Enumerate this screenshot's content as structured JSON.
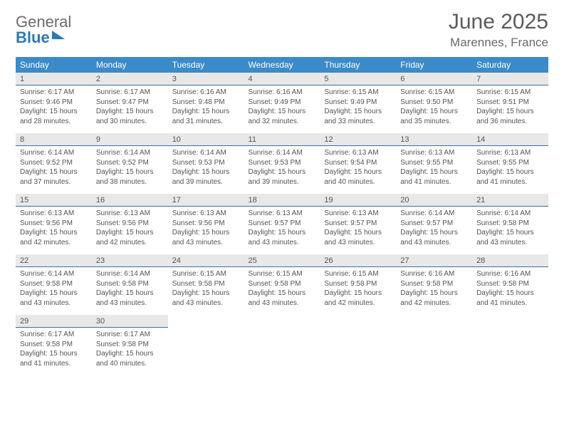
{
  "brand": {
    "part1": "General",
    "part2": "Blue"
  },
  "title": "June 2025",
  "location": "Marennes, France",
  "colors": {
    "header_bg": "#3b8bc8",
    "header_text": "#ffffff",
    "daynum_bg": "#e8e8e8",
    "daynum_border": "#3b6f9a",
    "text": "#555555",
    "brand_gray": "#6b6b6b",
    "brand_blue": "#2a7ab8",
    "page_bg": "#ffffff"
  },
  "typography": {
    "title_fontsize": 30,
    "location_fontsize": 17,
    "dow_fontsize": 12,
    "daynum_fontsize": 11,
    "details_fontsize": 10
  },
  "days_of_week": [
    "Sunday",
    "Monday",
    "Tuesday",
    "Wednesday",
    "Thursday",
    "Friday",
    "Saturday"
  ],
  "weeks": [
    [
      {
        "n": "1",
        "sunrise": "Sunrise: 6:17 AM",
        "sunset": "Sunset: 9:46 PM",
        "day": "Daylight: 15 hours and 28 minutes."
      },
      {
        "n": "2",
        "sunrise": "Sunrise: 6:17 AM",
        "sunset": "Sunset: 9:47 PM",
        "day": "Daylight: 15 hours and 30 minutes."
      },
      {
        "n": "3",
        "sunrise": "Sunrise: 6:16 AM",
        "sunset": "Sunset: 9:48 PM",
        "day": "Daylight: 15 hours and 31 minutes."
      },
      {
        "n": "4",
        "sunrise": "Sunrise: 6:16 AM",
        "sunset": "Sunset: 9:49 PM",
        "day": "Daylight: 15 hours and 32 minutes."
      },
      {
        "n": "5",
        "sunrise": "Sunrise: 6:15 AM",
        "sunset": "Sunset: 9:49 PM",
        "day": "Daylight: 15 hours and 33 minutes."
      },
      {
        "n": "6",
        "sunrise": "Sunrise: 6:15 AM",
        "sunset": "Sunset: 9:50 PM",
        "day": "Daylight: 15 hours and 35 minutes."
      },
      {
        "n": "7",
        "sunrise": "Sunrise: 6:15 AM",
        "sunset": "Sunset: 9:51 PM",
        "day": "Daylight: 15 hours and 36 minutes."
      }
    ],
    [
      {
        "n": "8",
        "sunrise": "Sunrise: 6:14 AM",
        "sunset": "Sunset: 9:52 PM",
        "day": "Daylight: 15 hours and 37 minutes."
      },
      {
        "n": "9",
        "sunrise": "Sunrise: 6:14 AM",
        "sunset": "Sunset: 9:52 PM",
        "day": "Daylight: 15 hours and 38 minutes."
      },
      {
        "n": "10",
        "sunrise": "Sunrise: 6:14 AM",
        "sunset": "Sunset: 9:53 PM",
        "day": "Daylight: 15 hours and 39 minutes."
      },
      {
        "n": "11",
        "sunrise": "Sunrise: 6:14 AM",
        "sunset": "Sunset: 9:53 PM",
        "day": "Daylight: 15 hours and 39 minutes."
      },
      {
        "n": "12",
        "sunrise": "Sunrise: 6:13 AM",
        "sunset": "Sunset: 9:54 PM",
        "day": "Daylight: 15 hours and 40 minutes."
      },
      {
        "n": "13",
        "sunrise": "Sunrise: 6:13 AM",
        "sunset": "Sunset: 9:55 PM",
        "day": "Daylight: 15 hours and 41 minutes."
      },
      {
        "n": "14",
        "sunrise": "Sunrise: 6:13 AM",
        "sunset": "Sunset: 9:55 PM",
        "day": "Daylight: 15 hours and 41 minutes."
      }
    ],
    [
      {
        "n": "15",
        "sunrise": "Sunrise: 6:13 AM",
        "sunset": "Sunset: 9:56 PM",
        "day": "Daylight: 15 hours and 42 minutes."
      },
      {
        "n": "16",
        "sunrise": "Sunrise: 6:13 AM",
        "sunset": "Sunset: 9:56 PM",
        "day": "Daylight: 15 hours and 42 minutes."
      },
      {
        "n": "17",
        "sunrise": "Sunrise: 6:13 AM",
        "sunset": "Sunset: 9:56 PM",
        "day": "Daylight: 15 hours and 43 minutes."
      },
      {
        "n": "18",
        "sunrise": "Sunrise: 6:13 AM",
        "sunset": "Sunset: 9:57 PM",
        "day": "Daylight: 15 hours and 43 minutes."
      },
      {
        "n": "19",
        "sunrise": "Sunrise: 6:13 AM",
        "sunset": "Sunset: 9:57 PM",
        "day": "Daylight: 15 hours and 43 minutes."
      },
      {
        "n": "20",
        "sunrise": "Sunrise: 6:14 AM",
        "sunset": "Sunset: 9:57 PM",
        "day": "Daylight: 15 hours and 43 minutes."
      },
      {
        "n": "21",
        "sunrise": "Sunrise: 6:14 AM",
        "sunset": "Sunset: 9:58 PM",
        "day": "Daylight: 15 hours and 43 minutes."
      }
    ],
    [
      {
        "n": "22",
        "sunrise": "Sunrise: 6:14 AM",
        "sunset": "Sunset: 9:58 PM",
        "day": "Daylight: 15 hours and 43 minutes."
      },
      {
        "n": "23",
        "sunrise": "Sunrise: 6:14 AM",
        "sunset": "Sunset: 9:58 PM",
        "day": "Daylight: 15 hours and 43 minutes."
      },
      {
        "n": "24",
        "sunrise": "Sunrise: 6:15 AM",
        "sunset": "Sunset: 9:58 PM",
        "day": "Daylight: 15 hours and 43 minutes."
      },
      {
        "n": "25",
        "sunrise": "Sunrise: 6:15 AM",
        "sunset": "Sunset: 9:58 PM",
        "day": "Daylight: 15 hours and 43 minutes."
      },
      {
        "n": "26",
        "sunrise": "Sunrise: 6:15 AM",
        "sunset": "Sunset: 9:58 PM",
        "day": "Daylight: 15 hours and 42 minutes."
      },
      {
        "n": "27",
        "sunrise": "Sunrise: 6:16 AM",
        "sunset": "Sunset: 9:58 PM",
        "day": "Daylight: 15 hours and 42 minutes."
      },
      {
        "n": "28",
        "sunrise": "Sunrise: 6:16 AM",
        "sunset": "Sunset: 9:58 PM",
        "day": "Daylight: 15 hours and 41 minutes."
      }
    ],
    [
      {
        "n": "29",
        "sunrise": "Sunrise: 6:17 AM",
        "sunset": "Sunset: 9:58 PM",
        "day": "Daylight: 15 hours and 41 minutes."
      },
      {
        "n": "30",
        "sunrise": "Sunrise: 6:17 AM",
        "sunset": "Sunset: 9:58 PM",
        "day": "Daylight: 15 hours and 40 minutes."
      },
      null,
      null,
      null,
      null,
      null
    ]
  ]
}
